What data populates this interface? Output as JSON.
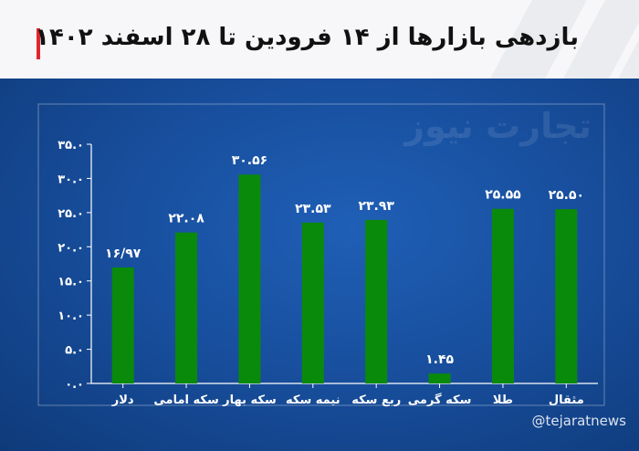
{
  "header": {
    "title": "بازدهی بازارها از ۱۴ فرودین تا ۲۸ اسفند ۱۴۰۲",
    "accent_color": "#e3262e"
  },
  "watermark": "تجارت نیوز",
  "handle": "@tejaratnews",
  "chart_data": {
    "type": "bar",
    "title": "بازدهی بازارها از ۱۴ فرودین تا ۲۸ اسفند ۱۴۰۲",
    "xlabel": "",
    "ylabel": "",
    "categories": [
      "دلار",
      "سکه امامی",
      "سکه بهار",
      "نیمه سکه",
      "ربع سکه",
      "سکه گرمی",
      "طلا",
      "مثقال"
    ],
    "values": [
      16.97,
      22.08,
      30.56,
      23.53,
      23.93,
      1.45,
      25.55,
      25.5
    ],
    "value_labels": [
      "۱۶/۹۷",
      "۲۲.۰۸",
      "۳۰.۵۶",
      "۲۳.۵۳",
      "۲۳.۹۳",
      "۱.۴۵",
      "۲۵.۵۵",
      "۲۵.۵۰"
    ],
    "ylim": [
      0,
      35
    ],
    "yticks": [
      0,
      5,
      10,
      15,
      20,
      25,
      30,
      35
    ],
    "ytick_labels": [
      "۰.۰",
      "۵.۰",
      "۱۰.۰",
      "۱۵.۰",
      "۲۰.۰",
      "۲۵.۰",
      "۳۰.۰",
      "۳۵.۰"
    ],
    "bar_color": "#0a8a0a",
    "grid": false,
    "legend": "none"
  }
}
